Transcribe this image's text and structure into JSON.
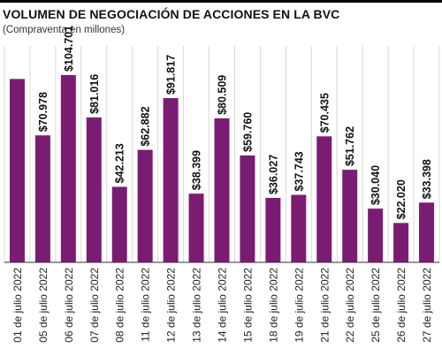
{
  "header": {
    "title": "VOLUMEN DE NEGOCIACIÓN DE ACCIONES EN LA BVC",
    "subtitle": "(Compraventa en millones)"
  },
  "colors": {
    "bar": "#7b1c73",
    "gridline": "#d8d8d8",
    "baseline": "#333333"
  },
  "chart_data": {
    "type": "bar",
    "title": "VOLUMEN DE NEGOCIACIÓN DE ACCIONES EN LA BVC",
    "subtitle": "(Compraventa en millones)",
    "xlabel": "",
    "ylabel": "",
    "ylim": [
      0,
      118000
    ],
    "grid": true,
    "categories": [
      "01 de julio 2022",
      "05 de julio 2022",
      "06 de julio 2022",
      "07 de julio 2022",
      "08 de julio 2022",
      "11 de julio 2022",
      "12 de julio 2022",
      "13 de julio 2022",
      "14 de julio 2022",
      "15 de julio 2022",
      "18 de julio 2022",
      "19 de julio 2022",
      "21 de julio 2022",
      "22 de julio 2022",
      "25 de julio 2022",
      "26 de julio 2022",
      "27 de julio 2022"
    ],
    "values": [
      102500,
      70978,
      104701,
      81016,
      42213,
      62882,
      91817,
      38399,
      80509,
      59760,
      36027,
      37743,
      70435,
      51762,
      30040,
      22020,
      33398
    ],
    "data_labels": [
      "",
      "$70.978",
      "$104.701",
      "$81.016",
      "$42.213",
      "$62.882",
      "$91.817",
      "$38.399",
      "$80.509",
      "$59.760",
      "$36.027",
      "$37.743",
      "$70.435",
      "$51.762",
      "$30.040",
      "$22.020",
      "$33.398"
    ]
  }
}
